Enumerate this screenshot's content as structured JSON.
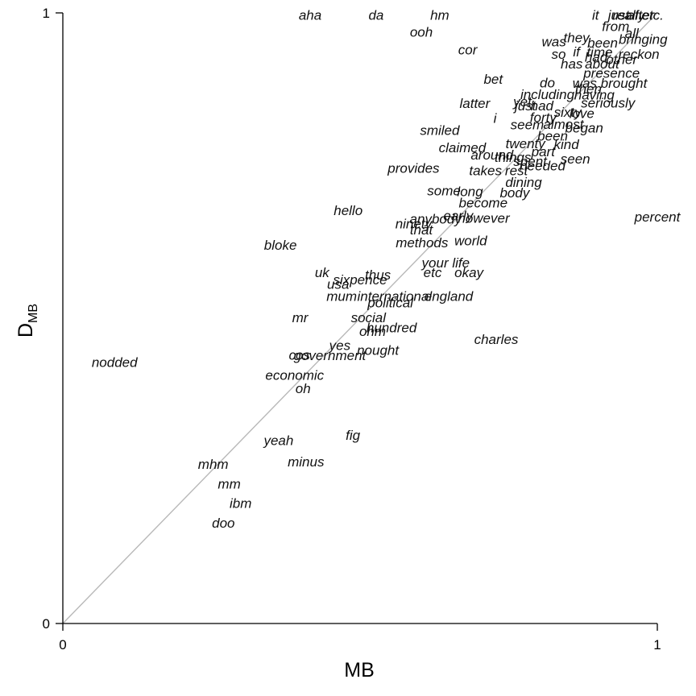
{
  "chart_data": {
    "type": "scatter",
    "xlabel": "MB",
    "ylabel_main": "D",
    "ylabel_sub": "MB",
    "xlim": [
      0,
      1
    ],
    "ylim": [
      0,
      1
    ],
    "xticks": [
      "0",
      "1"
    ],
    "yticks": [
      "0",
      "1"
    ],
    "reference_line": "y = x",
    "points": [
      {
        "label": "aha",
        "x": 0.416,
        "y": 0.997
      },
      {
        "label": "da",
        "x": 0.527,
        "y": 0.997
      },
      {
        "label": "hm",
        "x": 0.634,
        "y": 0.997
      },
      {
        "label": "ooh",
        "x": 0.603,
        "y": 0.969
      },
      {
        "label": "cor",
        "x": 0.681,
        "y": 0.94
      },
      {
        "label": "bet",
        "x": 0.724,
        "y": 0.892
      },
      {
        "label": "latter",
        "x": 0.693,
        "y": 0.852
      },
      {
        "label": "i",
        "x": 0.727,
        "y": 0.828
      },
      {
        "label": "smiled",
        "x": 0.634,
        "y": 0.808
      },
      {
        "label": "claimed",
        "x": 0.672,
        "y": 0.78
      },
      {
        "label": "provides",
        "x": 0.59,
        "y": 0.746
      },
      {
        "label": "hello",
        "x": 0.48,
        "y": 0.677
      },
      {
        "label": "percent",
        "x": 1.0,
        "y": 0.666
      },
      {
        "label": "bloke",
        "x": 0.366,
        "y": 0.62
      },
      {
        "label": "methods",
        "x": 0.604,
        "y": 0.624
      },
      {
        "label": "world",
        "x": 0.686,
        "y": 0.627
      },
      {
        "label": "your life",
        "x": 0.644,
        "y": 0.591
      },
      {
        "label": "uk",
        "x": 0.436,
        "y": 0.575
      },
      {
        "label": "etc",
        "x": 0.622,
        "y": 0.575
      },
      {
        "label": "okay",
        "x": 0.683,
        "y": 0.575
      },
      {
        "label": "thus",
        "x": 0.53,
        "y": 0.571
      },
      {
        "label": "sixpence",
        "x": 0.5,
        "y": 0.563
      },
      {
        "label": "usa",
        "x": 0.463,
        "y": 0.556
      },
      {
        "label": "mum",
        "x": 0.469,
        "y": 0.536
      },
      {
        "label": "international",
        "x": 0.558,
        "y": 0.536
      },
      {
        "label": "england",
        "x": 0.649,
        "y": 0.536
      },
      {
        "label": "political",
        "x": 0.551,
        "y": 0.526
      },
      {
        "label": "mr",
        "x": 0.399,
        "y": 0.501
      },
      {
        "label": "social",
        "x": 0.514,
        "y": 0.501
      },
      {
        "label": "hundred",
        "x": 0.553,
        "y": 0.485
      },
      {
        "label": "ohm",
        "x": 0.521,
        "y": 0.479
      },
      {
        "label": "charles",
        "x": 0.729,
        "y": 0.466
      },
      {
        "label": "yes",
        "x": 0.466,
        "y": 0.456
      },
      {
        "label": "nought",
        "x": 0.53,
        "y": 0.448
      },
      {
        "label": "cos",
        "x": 0.398,
        "y": 0.44
      },
      {
        "label": "government",
        "x": 0.449,
        "y": 0.439
      },
      {
        "label": "nodded",
        "x": 0.087,
        "y": 0.428
      },
      {
        "label": "economic",
        "x": 0.39,
        "y": 0.407
      },
      {
        "label": "oh",
        "x": 0.404,
        "y": 0.385
      },
      {
        "label": "fig",
        "x": 0.488,
        "y": 0.309
      },
      {
        "label": "yeah",
        "x": 0.363,
        "y": 0.3
      },
      {
        "label": "minus",
        "x": 0.409,
        "y": 0.265
      },
      {
        "label": "mhm",
        "x": 0.253,
        "y": 0.261
      },
      {
        "label": "mm",
        "x": 0.28,
        "y": 0.229
      },
      {
        "label": "ibm",
        "x": 0.299,
        "y": 0.197
      },
      {
        "label": "doo",
        "x": 0.27,
        "y": 0.165
      },
      {
        "label": "it",
        "x": 0.896,
        "y": 0.997
      },
      {
        "label": "just",
        "x": 0.935,
        "y": 0.997
      },
      {
        "label": "really",
        "x": 0.952,
        "y": 0.997
      },
      {
        "label": "after",
        "x": 0.972,
        "y": 0.997
      },
      {
        "label": "etc.",
        "x": 0.992,
        "y": 0.997
      },
      {
        "label": "from",
        "x": 0.93,
        "y": 0.978
      },
      {
        "label": "all",
        "x": 0.957,
        "y": 0.967
      },
      {
        "label": "they",
        "x": 0.864,
        "y": 0.96
      },
      {
        "label": "was",
        "x": 0.826,
        "y": 0.953
      },
      {
        "label": "been",
        "x": 0.908,
        "y": 0.951
      },
      {
        "label": "bringing",
        "x": 0.976,
        "y": 0.957
      },
      {
        "label": "so",
        "x": 0.834,
        "y": 0.933
      },
      {
        "label": "if",
        "x": 0.864,
        "y": 0.937
      },
      {
        "label": "time",
        "x": 0.903,
        "y": 0.936
      },
      {
        "label": "reckon",
        "x": 0.969,
        "y": 0.933
      },
      {
        "label": "had",
        "x": 0.897,
        "y": 0.928
      },
      {
        "label": "other",
        "x": 0.94,
        "y": 0.924
      },
      {
        "label": "has",
        "x": 0.856,
        "y": 0.917
      },
      {
        "label": "about",
        "x": 0.907,
        "y": 0.917
      },
      {
        "label": "presence",
        "x": 0.923,
        "y": 0.902
      },
      {
        "label": "do",
        "x": 0.815,
        "y": 0.886
      },
      {
        "label": "was brought",
        "x": 0.92,
        "y": 0.885
      },
      {
        "label": "then",
        "x": 0.884,
        "y": 0.876
      },
      {
        "label": "including",
        "x": 0.815,
        "y": 0.867
      },
      {
        "label": "having",
        "x": 0.894,
        "y": 0.866
      },
      {
        "label": "seriously",
        "x": 0.917,
        "y": 0.853
      },
      {
        "label": "yet",
        "x": 0.773,
        "y": 0.855
      },
      {
        "label": "just",
        "x": 0.778,
        "y": 0.848
      },
      {
        "label": "had",
        "x": 0.806,
        "y": 0.848
      },
      {
        "label": "sixty",
        "x": 0.849,
        "y": 0.838
      },
      {
        "label": "love",
        "x": 0.873,
        "y": 0.836
      },
      {
        "label": "forty",
        "x": 0.808,
        "y": 0.829
      },
      {
        "label": "seem",
        "x": 0.781,
        "y": 0.817
      },
      {
        "label": "almost",
        "x": 0.842,
        "y": 0.818
      },
      {
        "label": "began",
        "x": 0.877,
        "y": 0.812
      },
      {
        "label": "been",
        "x": 0.824,
        "y": 0.799
      },
      {
        "label": "twenty",
        "x": 0.778,
        "y": 0.786
      },
      {
        "label": "kind",
        "x": 0.847,
        "y": 0.785
      },
      {
        "label": "part",
        "x": 0.808,
        "y": 0.773
      },
      {
        "label": "around",
        "x": 0.722,
        "y": 0.768
      },
      {
        "label": "things",
        "x": 0.757,
        "y": 0.764
      },
      {
        "label": "seen",
        "x": 0.862,
        "y": 0.761
      },
      {
        "label": "spent",
        "x": 0.786,
        "y": 0.757
      },
      {
        "label": "needed",
        "x": 0.807,
        "y": 0.75
      },
      {
        "label": "takes",
        "x": 0.711,
        "y": 0.742
      },
      {
        "label": "rest",
        "x": 0.763,
        "y": 0.742
      },
      {
        "label": "dining",
        "x": 0.775,
        "y": 0.723
      },
      {
        "label": "some",
        "x": 0.641,
        "y": 0.709
      },
      {
        "label": "long",
        "x": 0.685,
        "y": 0.708
      },
      {
        "label": "body",
        "x": 0.76,
        "y": 0.706
      },
      {
        "label": "become",
        "x": 0.707,
        "y": 0.689
      },
      {
        "label": "early",
        "x": 0.665,
        "y": 0.668
      },
      {
        "label": "however",
        "x": 0.708,
        "y": 0.664
      },
      {
        "label": "anybody",
        "x": 0.627,
        "y": 0.663
      },
      {
        "label": "ninety",
        "x": 0.59,
        "y": 0.655
      },
      {
        "label": "that",
        "x": 0.603,
        "y": 0.645
      }
    ]
  }
}
